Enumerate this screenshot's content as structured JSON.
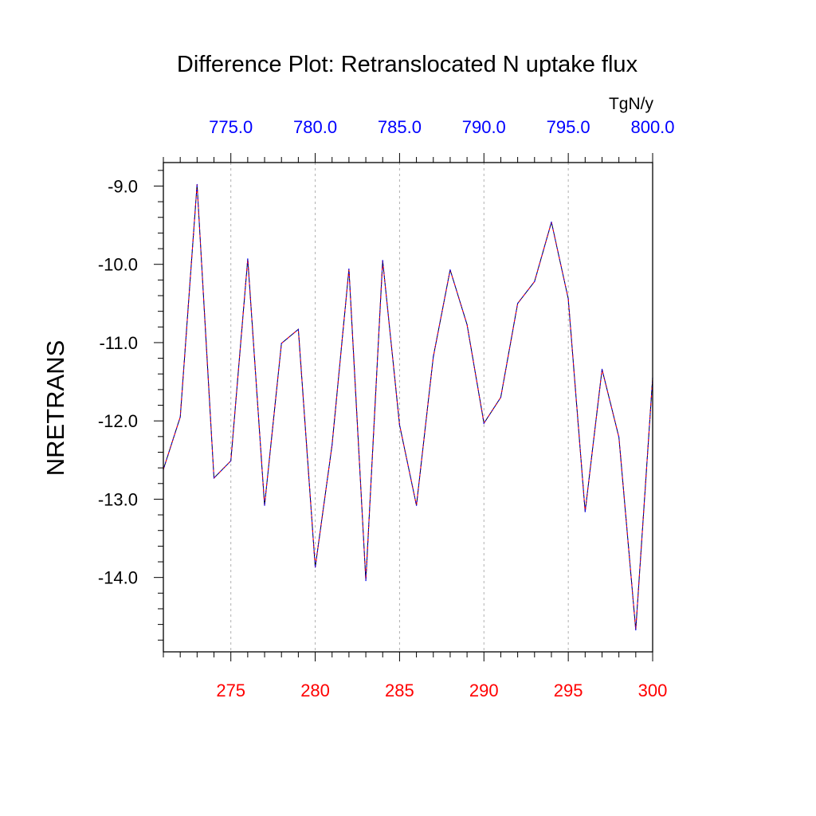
{
  "chart_data": {
    "type": "line",
    "title": "Difference Plot: Retranslocated N uptake flux",
    "units": "TgN/y",
    "ylabel": "NRETRANS",
    "xlabel": "",
    "xlim": [
      271,
      300
    ],
    "ylim": [
      -14.95,
      -8.7
    ],
    "x_ticks": [
      "275",
      "280",
      "285",
      "290",
      "295",
      "300"
    ],
    "x_tick_values": [
      275,
      280,
      285,
      290,
      295,
      300
    ],
    "top_ticks": [
      "775.0",
      "780.0",
      "785.0",
      "790.0",
      "795.0",
      "800.0"
    ],
    "top_tick_values": [
      275,
      280,
      285,
      290,
      295,
      300
    ],
    "y_ticks": [
      "-9.0",
      "-10.0",
      "-11.0",
      "-12.0",
      "-13.0",
      "-14.0"
    ],
    "y_tick_values": [
      -9,
      -10,
      -11,
      -12,
      -13,
      -14
    ],
    "grid": "vertical dashed at major x ticks",
    "colors": {
      "bottom_ticks": "#ff0000",
      "top_ticks": "#0000ff",
      "series_solid": "#000000",
      "series_dashed": "#ff0000",
      "series_dotted": "#0000ff",
      "grid": "#b0b0b0"
    },
    "x": [
      271,
      272,
      273,
      274,
      275,
      276,
      277,
      278,
      279,
      280,
      281,
      282,
      283,
      284,
      285,
      286,
      287,
      288,
      289,
      290,
      291,
      292,
      293,
      294,
      295,
      296,
      297,
      298,
      299,
      300
    ],
    "series": [
      {
        "values": [
          -12.62,
          -11.95,
          -8.98,
          -12.73,
          -12.51,
          -9.93,
          -13.08,
          -11.01,
          -10.83,
          -13.87,
          -12.31,
          -10.06,
          -14.04,
          -9.95,
          -12.05,
          -13.08,
          -11.18,
          -10.07,
          -10.77,
          -12.03,
          -11.7,
          -10.5,
          -10.22,
          -9.46,
          -10.44,
          -13.16,
          -11.34,
          -12.21,
          -14.67,
          -11.45
        ]
      }
    ]
  }
}
